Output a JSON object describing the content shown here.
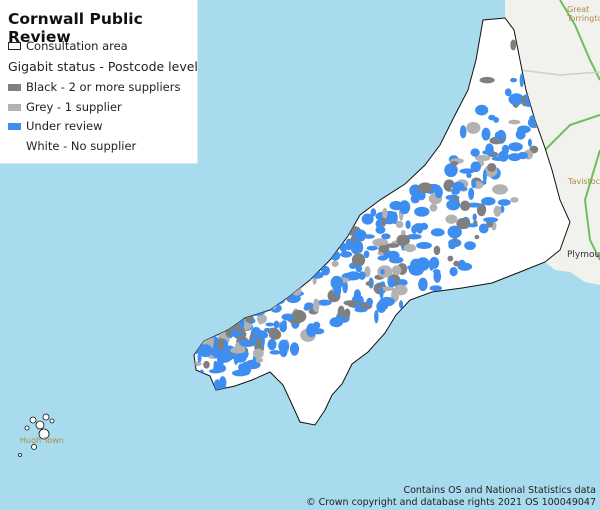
{
  "legend": {
    "title": "Cornwall Public Review",
    "items": [
      {
        "label": "Consultation area",
        "swatch": "outline",
        "color": "#ffffff"
      },
      {
        "label": "Gigabit status - Postcode level",
        "swatch": "none"
      },
      {
        "label": "Black - 2 or more suppliers",
        "swatch": "fill",
        "color": "#7f7f7f"
      },
      {
        "label": "Grey - 1 supplier",
        "swatch": "fill",
        "color": "#b2b2b2"
      },
      {
        "label": "Under review",
        "swatch": "fill",
        "color": "#3d8ef0"
      },
      {
        "label": "White - No supplier",
        "swatch": "none"
      }
    ]
  },
  "map": {
    "places": [
      "Great",
      "Torrington",
      "Tavistock",
      "Plymouth",
      "Hugh Town"
    ],
    "colors": {
      "sea": "#a9dbef",
      "land": "#f1f1ee",
      "review_area": "#ffffff",
      "road": "#6cbf5a"
    }
  },
  "attribution": {
    "line1": "Contains OS and National Statistics data",
    "line2": "© Crown copyright and database rights 2021 OS 100049047"
  }
}
